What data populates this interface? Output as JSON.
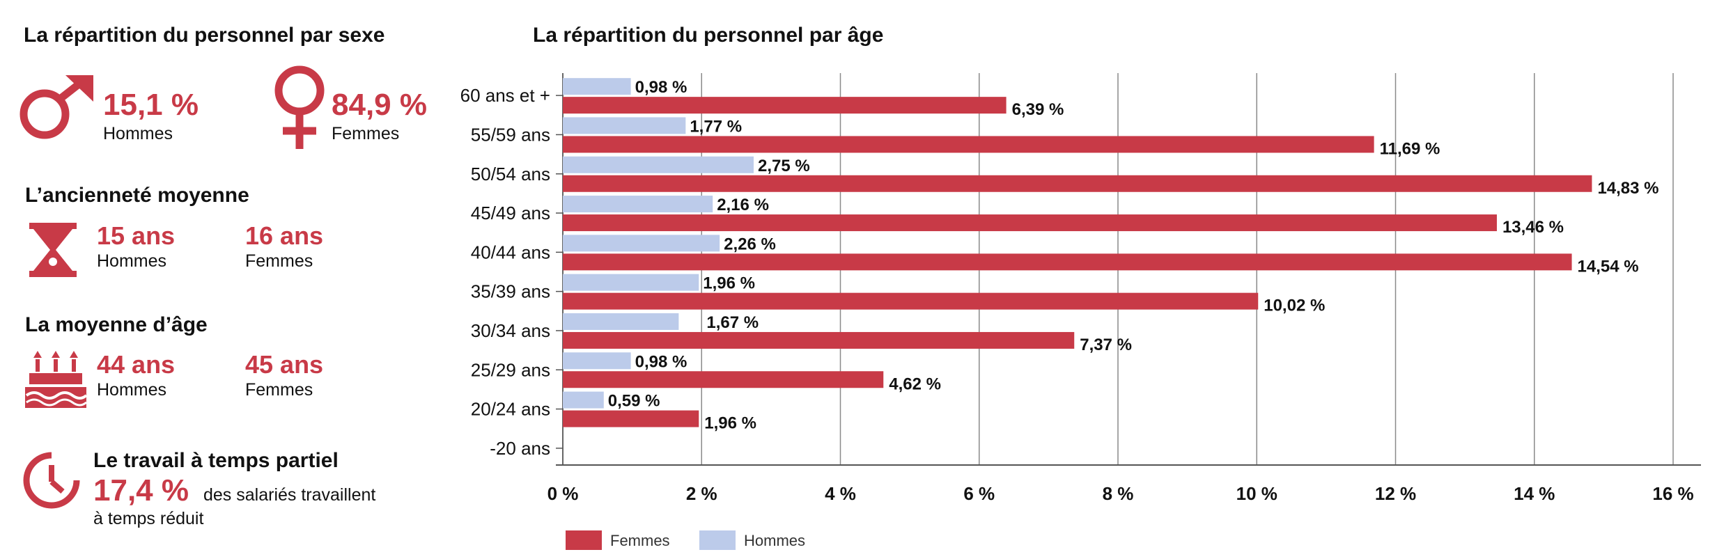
{
  "left_panel": {
    "sex": {
      "title": "La répartition du personnel par sexe",
      "men_value": "15,1 %",
      "men_label": "Hommes",
      "women_value": "84,9 %",
      "women_label": "Femmes",
      "men_icon": "male-symbol-icon",
      "women_icon": "female-symbol-icon"
    },
    "seniority": {
      "title": "L’ancienneté moyenne",
      "men_value": "15 ans",
      "men_label": "Hommes",
      "women_value": "16 ans",
      "women_label": "Femmes",
      "icon": "hourglass-icon"
    },
    "age": {
      "title": "La moyenne d’âge",
      "men_value": "44 ans",
      "men_label": "Hommes",
      "women_value": "45 ans",
      "women_label": "Femmes",
      "icon": "birthday-cake-icon"
    },
    "part_time": {
      "title": "Le travail à temps partiel",
      "value": "17,4 %",
      "text_line1": "des salariés travaillent",
      "text_line2": "à temps réduit",
      "icon": "clock-icon"
    }
  },
  "chart_data": {
    "type": "bar",
    "orientation": "horizontal",
    "title": "La répartition du personnel par âge",
    "categories": [
      "60 ans et +",
      "55/59 ans",
      "50/54 ans",
      "45/49 ans",
      "40/44 ans",
      "35/39 ans",
      "30/34 ans",
      "25/29 ans",
      "20/24 ans",
      "-20 ans"
    ],
    "series": [
      {
        "name": "Hommes",
        "color": "#bccbea",
        "values": [
          0.98,
          1.77,
          2.75,
          2.16,
          2.26,
          1.96,
          1.67,
          0.98,
          0.59,
          null
        ],
        "labels": [
          "0,98 %",
          "1,77 %",
          "2,75 %",
          "2,16 %",
          "2,26 %",
          "1,96 %",
          "1,67 %",
          "0,98 %",
          "0,59 %",
          ""
        ]
      },
      {
        "name": "Femmes",
        "color": "#c83a47",
        "values": [
          6.39,
          11.69,
          14.83,
          13.46,
          14.54,
          10.02,
          7.37,
          4.62,
          1.96,
          null
        ],
        "labels": [
          "6,39 %",
          "11,69 %",
          "14,83 %",
          "13,46 %",
          "14,54 %",
          "10,02 %",
          "7,37 %",
          "4,62 %",
          "1,96 %",
          ""
        ]
      }
    ],
    "xlim": [
      0,
      16
    ],
    "xticks": [
      0,
      2,
      4,
      6,
      8,
      10,
      12,
      14,
      16
    ],
    "xtick_labels": [
      "0 %",
      "2 %",
      "4 %",
      "6 %",
      "8 %",
      "10 %",
      "12 %",
      "14 %",
      "16 %"
    ],
    "grid": true,
    "legend": {
      "placement": "bottom-left",
      "entries": [
        "Femmes",
        "Hommes"
      ]
    }
  }
}
